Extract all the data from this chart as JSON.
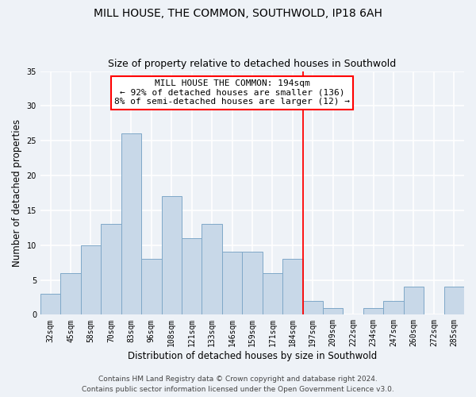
{
  "title": "MILL HOUSE, THE COMMON, SOUTHWOLD, IP18 6AH",
  "subtitle": "Size of property relative to detached houses in Southwold",
  "xlabel": "Distribution of detached houses by size in Southwold",
  "ylabel": "Number of detached properties",
  "bar_color": "#c8d8e8",
  "bar_edge_color": "#7fa8c8",
  "categories": [
    "32sqm",
    "45sqm",
    "58sqm",
    "70sqm",
    "83sqm",
    "96sqm",
    "108sqm",
    "121sqm",
    "133sqm",
    "146sqm",
    "159sqm",
    "171sqm",
    "184sqm",
    "197sqm",
    "209sqm",
    "222sqm",
    "234sqm",
    "247sqm",
    "260sqm",
    "272sqm",
    "285sqm"
  ],
  "values": [
    3,
    6,
    10,
    13,
    26,
    8,
    17,
    11,
    13,
    9,
    9,
    6,
    8,
    2,
    1,
    0,
    1,
    2,
    4,
    0,
    4
  ],
  "ylim": [
    0,
    35
  ],
  "yticks": [
    0,
    5,
    10,
    15,
    20,
    25,
    30,
    35
  ],
  "vline_index": 13,
  "annotation_title": "MILL HOUSE THE COMMON: 194sqm",
  "annotation_line1": "← 92% of detached houses are smaller (136)",
  "annotation_line2": "8% of semi-detached houses are larger (12) →",
  "footer_line1": "Contains HM Land Registry data © Crown copyright and database right 2024.",
  "footer_line2": "Contains public sector information licensed under the Open Government Licence v3.0.",
  "background_color": "#eef2f7",
  "grid_color": "#ffffff",
  "title_fontsize": 10,
  "subtitle_fontsize": 9,
  "axis_label_fontsize": 8.5,
  "tick_fontsize": 7,
  "annotation_fontsize": 8,
  "footer_fontsize": 6.5
}
